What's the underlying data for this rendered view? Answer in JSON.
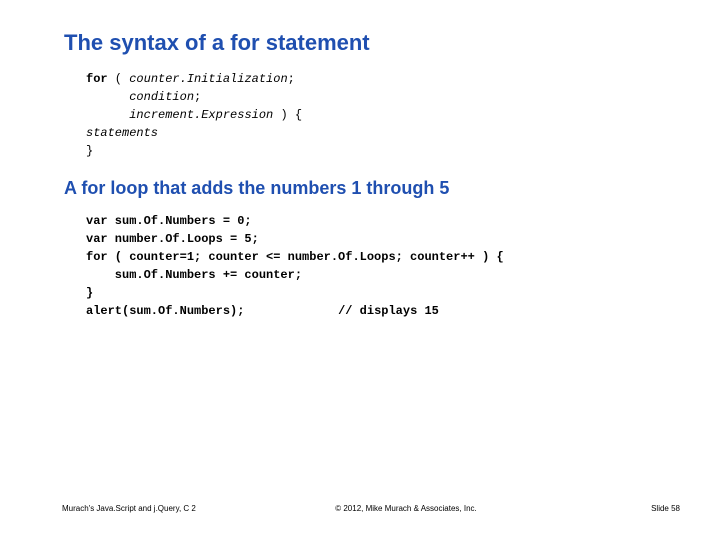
{
  "colors": {
    "heading": "#1f4fb0",
    "background": "#ffffff",
    "text": "#000000"
  },
  "typography": {
    "heading_family": "Arial",
    "heading_size_pt": 22,
    "subheading_size_pt": 18,
    "code_family": "Courier New",
    "code_size_pt": 12,
    "footer_size_pt": 8
  },
  "heading1": "The syntax of a for statement",
  "code1": {
    "kw_for": "for",
    "paren_open": " ( ",
    "counter_init": "counter.Initialization",
    "semicolon": ";",
    "condition": "condition",
    "increment_expr": "increment.Expression",
    "paren_close_brace": " ) {",
    "statements": "statements",
    "close_brace": "}"
  },
  "heading2": "A for loop that adds the numbers 1 through 5",
  "code2": {
    "l1": "var sum.Of.Numbers = 0;",
    "l2": "var number.Of.Loops = 5;",
    "l3": "for ( counter=1; counter <= number.Of.Loops; counter++ ) {",
    "l4": "    sum.Of.Numbers += counter;",
    "l5": "}",
    "l6a": "alert(sum.Of.Numbers);",
    "l6b": "// displays 15"
  },
  "footer": {
    "left": "Murach's Java.Script and j.Query, C 2",
    "mid": "© 2012, Mike Murach & Associates, Inc.",
    "right": "Slide 58"
  }
}
